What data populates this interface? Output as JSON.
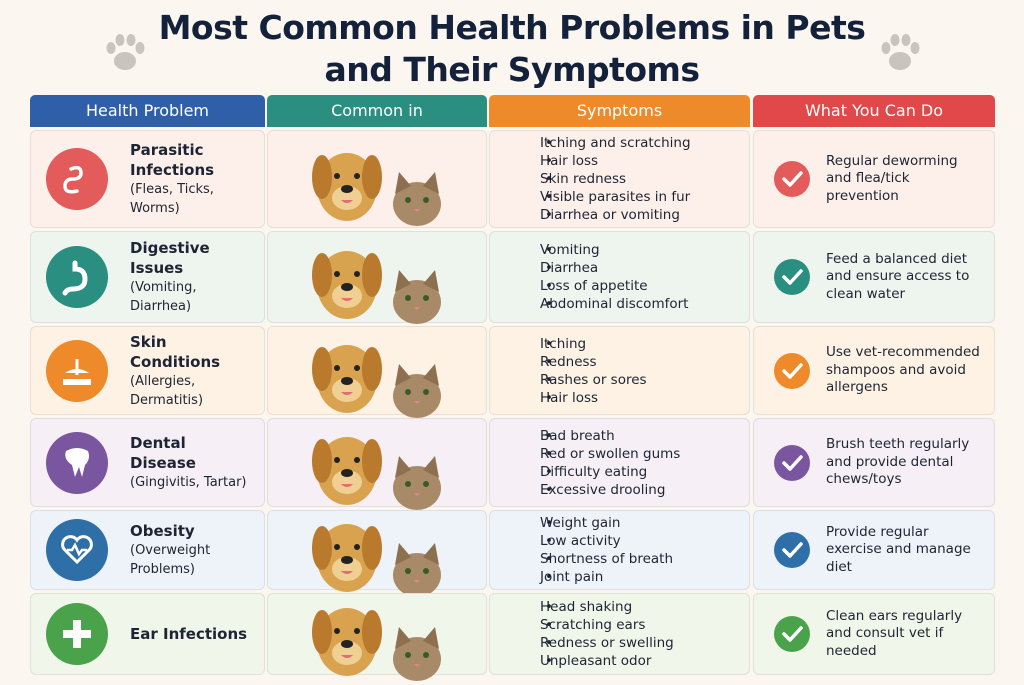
{
  "title": [
    "Most Common Health Problems in Pets",
    "and Their Symptoms"
  ],
  "headers": [
    "Health Problem",
    "Common in",
    "Symptoms",
    "What You Can Do"
  ],
  "rows": [
    {
      "problem": "Parasitic Infections",
      "detail": "(Fleas, Ticks, Worms)",
      "symptoms": [
        "Itching and scratching",
        "Hair loss",
        "Skin redness",
        "Visible parasites in fur",
        "Diarrhea or vomiting"
      ],
      "action": "Regular deworming and flea/tick prevention"
    },
    {
      "problem": "Digestive Issues",
      "detail": "(Vomiting, Diarrhea)",
      "symptoms": [
        "Vomiting",
        "Diarrhea",
        "Loss of appetite",
        "Abdominal discomfort"
      ],
      "action": "Feed a balanced diet and ensure access to clean water"
    },
    {
      "problem": "Skin Conditions",
      "detail": "(Allergies, Dermatitis)",
      "symptoms": [
        "Itching",
        "Redness",
        "Rashes or sores",
        "Hair loss"
      ],
      "action": "Use vet-recommended shampoos and avoid allergens"
    },
    {
      "problem": "Dental Disease",
      "detail": "(Gingivitis, Tartar)",
      "symptoms": [
        "Bad breath",
        "Red or swollen gums",
        "Difficulty eating",
        "Excessive drooling"
      ],
      "action": "Brush teeth regularly and provide dental chews/toys"
    },
    {
      "problem": "Obesity",
      "detail": "(Overweight Problems)",
      "symptoms": [
        "Weight gain",
        "Low activity",
        "Shortness of breath",
        "Joint pain"
      ],
      "action": "Provide regular exercise and manage diet"
    },
    {
      "problem": "Ear Infections",
      "detail": "",
      "symptoms": [
        "Head shaking",
        "Scratching ears",
        "Redness or swelling",
        "Unpleasant odor"
      ],
      "action": "Clean ears regularly and consult vet if needed"
    }
  ]
}
